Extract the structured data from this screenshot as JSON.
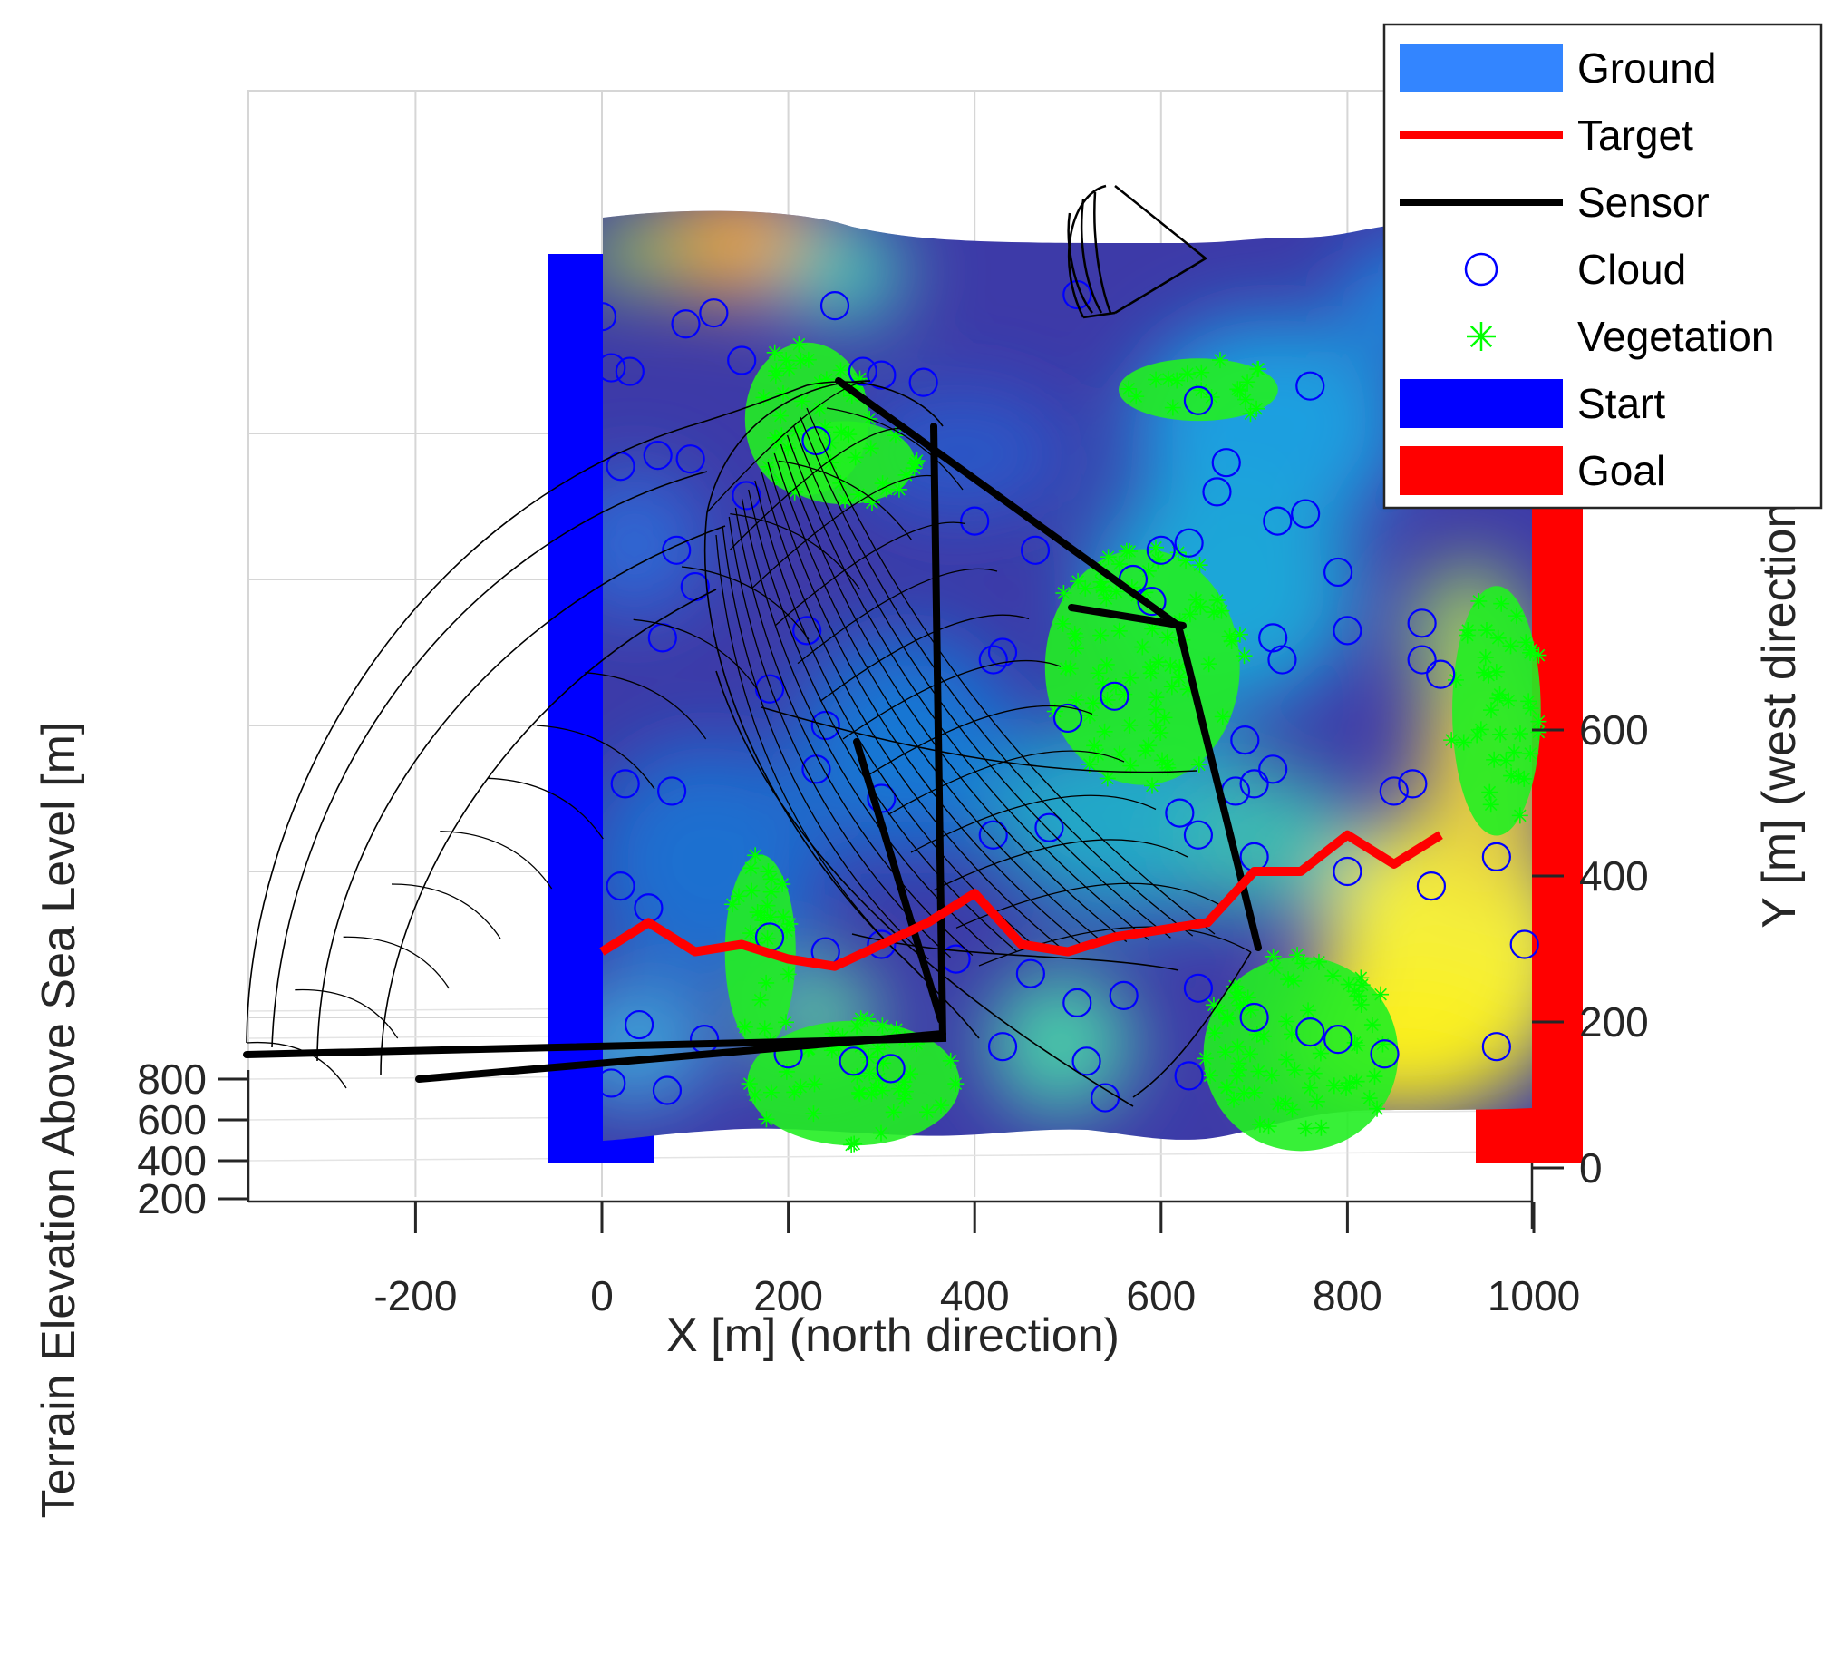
{
  "chart_data": {
    "type": "3d-terrain",
    "title": "",
    "xlabel": "X [m] (north direction)",
    "ylabel": "Y [m] (west direction)",
    "zlabel": "Terrain Elevation Above Sea Level [m]",
    "x_ticks": [
      "-200",
      "0",
      "200",
      "400",
      "600",
      "800",
      "1000"
    ],
    "y_ticks": [
      "0",
      "200",
      "400",
      "600"
    ],
    "z_ticks": [
      "200",
      "400",
      "600",
      "800"
    ],
    "x_range": [
      -380,
      1000
    ],
    "y_range": [
      0,
      1200
    ],
    "grid": true,
    "legend_position": "top-right",
    "legend": [
      {
        "label": "Ground",
        "kind": "patch",
        "color": "#3385ff"
      },
      {
        "label": "Target",
        "kind": "line",
        "color": "#ff0000"
      },
      {
        "label": "Sensor",
        "kind": "line",
        "color": "#000000"
      },
      {
        "label": "Cloud",
        "kind": "circle",
        "color": "#0000ff"
      },
      {
        "label": "Vegetation",
        "kind": "star",
        "color": "#00ff00"
      },
      {
        "label": "Start",
        "kind": "patch",
        "color": "#0000ff"
      },
      {
        "label": "Goal",
        "kind": "patch",
        "color": "#ff0000"
      }
    ],
    "target_path": {
      "x": [
        0,
        50,
        100,
        150,
        200,
        250,
        300,
        350,
        400,
        450,
        500,
        550,
        600,
        650,
        700,
        750,
        800,
        850,
        900
      ],
      "y": [
        290,
        330,
        290,
        300,
        280,
        270,
        300,
        330,
        370,
        300,
        290,
        310,
        320,
        330,
        400,
        400,
        450,
        410,
        450
      ]
    },
    "clouds": [
      [
        0,
        1160
      ],
      [
        10,
        1090
      ],
      [
        30,
        1085
      ],
      [
        90,
        1150
      ],
      [
        120,
        1165
      ],
      [
        150,
        1100
      ],
      [
        250,
        1175
      ],
      [
        510,
        1190
      ],
      [
        280,
        1085
      ],
      [
        300,
        1080
      ],
      [
        345,
        1070
      ],
      [
        640,
        1045
      ],
      [
        760,
        1065
      ],
      [
        230,
        990
      ],
      [
        20,
        955
      ],
      [
        60,
        970
      ],
      [
        95,
        965
      ],
      [
        155,
        915
      ],
      [
        400,
        880
      ],
      [
        465,
        840
      ],
      [
        630,
        850
      ],
      [
        790,
        810
      ],
      [
        725,
        880
      ],
      [
        755,
        890
      ],
      [
        670,
        960
      ],
      [
        660,
        920
      ],
      [
        80,
        840
      ],
      [
        100,
        790
      ],
      [
        65,
        720
      ],
      [
        220,
        730
      ],
      [
        180,
        650
      ],
      [
        240,
        600
      ],
      [
        420,
        690
      ],
      [
        430,
        700
      ],
      [
        720,
        720
      ],
      [
        730,
        690
      ],
      [
        880,
        690
      ],
      [
        900,
        670
      ],
      [
        800,
        730
      ],
      [
        880,
        740
      ],
      [
        500,
        610
      ],
      [
        550,
        640
      ],
      [
        590,
        770
      ],
      [
        570,
        800
      ],
      [
        600,
        840
      ],
      [
        680,
        510
      ],
      [
        700,
        520
      ],
      [
        690,
        580
      ],
      [
        720,
        540
      ],
      [
        850,
        510
      ],
      [
        870,
        520
      ],
      [
        25,
        520
      ],
      [
        75,
        510
      ],
      [
        230,
        540
      ],
      [
        300,
        500
      ],
      [
        420,
        450
      ],
      [
        480,
        460
      ],
      [
        620,
        480
      ],
      [
        640,
        450
      ],
      [
        700,
        420
      ],
      [
        800,
        400
      ],
      [
        890,
        380
      ],
      [
        960,
        420
      ],
      [
        20,
        380
      ],
      [
        50,
        350
      ],
      [
        180,
        310
      ],
      [
        240,
        290
      ],
      [
        300,
        300
      ],
      [
        380,
        280
      ],
      [
        460,
        260
      ],
      [
        510,
        220
      ],
      [
        560,
        230
      ],
      [
        640,
        240
      ],
      [
        700,
        200
      ],
      [
        760,
        180
      ],
      [
        790,
        170
      ],
      [
        990,
        300
      ],
      [
        960,
        160
      ],
      [
        40,
        190
      ],
      [
        110,
        170
      ],
      [
        200,
        150
      ],
      [
        270,
        140
      ],
      [
        310,
        130
      ],
      [
        430,
        160
      ],
      [
        520,
        140
      ],
      [
        630,
        120
      ],
      [
        10,
        110
      ],
      [
        70,
        100
      ],
      [
        540,
        90
      ],
      [
        840,
        150
      ]
    ],
    "vegetation_clusters": [
      {
        "center": [
          220,
          1020
        ],
        "radius": [
          70,
          110
        ]
      },
      {
        "center": [
          640,
          1060
        ],
        "radius": [
          90,
          45
        ]
      },
      {
        "center": [
          260,
          960
        ],
        "radius": [
          80,
          60
        ]
      },
      {
        "center": [
          580,
          680
        ],
        "radius": [
          110,
          170
        ]
      },
      {
        "center": [
          170,
          290
        ],
        "radius": [
          40,
          140
        ]
      },
      {
        "center": [
          270,
          110
        ],
        "radius": [
          120,
          90
        ]
      },
      {
        "center": [
          750,
          150
        ],
        "radius": [
          110,
          140
        ]
      },
      {
        "center": [
          960,
          620
        ],
        "radius": [
          50,
          180
        ]
      }
    ],
    "start_region": {
      "x": [
        -55,
        45
      ],
      "y": [
        0,
        1130
      ]
    },
    "goal_region": {
      "x": [
        940,
        1060
      ],
      "y": [
        0,
        880
      ]
    }
  }
}
